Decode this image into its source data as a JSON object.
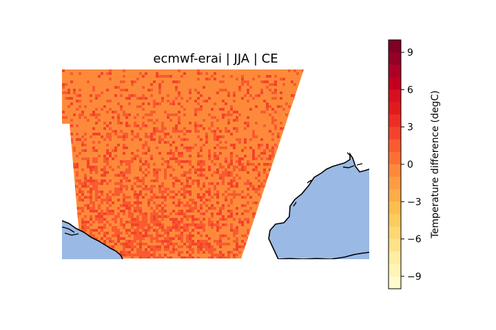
{
  "title": "ecmwf-erai | JJA | CE",
  "colorbar": {
    "label": "Temperature difference (degC)",
    "ticks": [
      {
        "value": 9,
        "label": "9"
      },
      {
        "value": 6,
        "label": "6"
      },
      {
        "value": 3,
        "label": "3"
      },
      {
        "value": 0,
        "label": "0"
      },
      {
        "value": -3,
        "label": "−3"
      },
      {
        "value": -6,
        "label": "−6"
      },
      {
        "value": -9,
        "label": "−9"
      }
    ],
    "range": [
      -10,
      10
    ],
    "colormap": "YlOrRd",
    "levels": [
      {
        "value": 10,
        "color": "#800026"
      },
      {
        "value": 9,
        "color": "#950026"
      },
      {
        "value": 8,
        "color": "#ad0026"
      },
      {
        "value": 7,
        "color": "#c4001f"
      },
      {
        "value": 6,
        "color": "#d7101f"
      },
      {
        "value": 5,
        "color": "#e31a1c"
      },
      {
        "value": 4,
        "color": "#ec2e22"
      },
      {
        "value": 3,
        "color": "#f4432a"
      },
      {
        "value": 2,
        "color": "#f95b2f"
      },
      {
        "value": 1,
        "color": "#fc7133"
      },
      {
        "value": 0,
        "color": "#fd8a3b"
      },
      {
        "value": -1,
        "color": "#fd9c42"
      },
      {
        "value": -2,
        "color": "#feac49"
      },
      {
        "value": -3,
        "color": "#febd50"
      },
      {
        "value": -4,
        "color": "#fecb5e"
      },
      {
        "value": -5,
        "color": "#fed773"
      },
      {
        "value": -6,
        "color": "#fee288"
      },
      {
        "value": -7,
        "color": "#ffeda0"
      },
      {
        "value": -8,
        "color": "#fff4b5"
      },
      {
        "value": -9,
        "color": "#fffbcb"
      },
      {
        "value": -10,
        "color": "#ffffcc"
      }
    ]
  },
  "map": {
    "field_colors": {
      "base": "#fd8a3b",
      "warm": "#f95b2f",
      "warmer": "#f4432a"
    },
    "ocean_color": "#9ab9e4",
    "coastline_color": "#000000"
  }
}
